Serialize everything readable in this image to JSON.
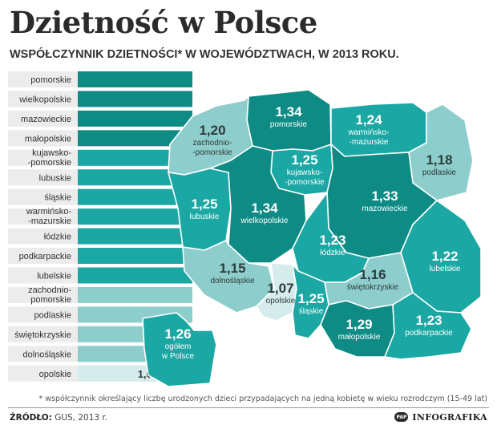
{
  "header": {
    "title": "Dzietność w Polsce",
    "subtitle": "WSPÓŁCZYNNIK DZIETNOŚCI* W WOJEWÓDZTWACH, W 2013 ROKU."
  },
  "footer": {
    "footnote": "* współczynnik określający liczbę urodzonych dzieci przypadających na jedną kobietę w wieku rozrodczym (15-49 lat)",
    "source_label": "ŹRÓDŁO:",
    "source_value": "GUS, 2013 r.",
    "brand_logo": "PAP",
    "brand_text": "INFOGRAFIKA"
  },
  "colors": {
    "dark": "#0e8b84",
    "mid": "#1ba7a3",
    "light": "#8dcdcb",
    "pale": "#d6ecec",
    "row_bg": "#ececec",
    "region_label": "#ffffff",
    "region_value_dark": "#2d3b3b"
  },
  "chart_data": {
    "type": "bar",
    "orientation": "horizontal",
    "decimal_separator": ",",
    "categories": [
      "pomorskie",
      "wielkopolskie",
      "mazowieckie",
      "małopolskie",
      "kujawsko-\n-pomorskie",
      "lubuskie",
      "śląskie",
      "warmińsko-\n-mazurskie",
      "łódzkie",
      "podkarpackie",
      "lubelskie",
      "zachodnio-\npomorskie",
      "podlaskie",
      "świętokrzyskie",
      "dolnośląskie",
      "opolskie"
    ],
    "values": [
      1.34,
      1.34,
      1.33,
      1.29,
      1.25,
      1.25,
      1.25,
      1.24,
      1.23,
      1.23,
      1.22,
      1.2,
      1.18,
      1.16,
      1.15,
      1.07
    ],
    "map_regions": [
      {
        "name": "pomorskie",
        "label": "pomorskie",
        "value": 1.34
      },
      {
        "name": "warminsko-mazurskie",
        "label": "warmińsko-\n-mazurskie",
        "value": 1.24
      },
      {
        "name": "zachodniopomorskie",
        "label": "zachodnio-\n-pomorskie",
        "value": 1.2
      },
      {
        "name": "podlaskie",
        "label": "podlaskie",
        "value": 1.18
      },
      {
        "name": "kujawsko-pomorskie",
        "label": "kujawsko-\n-pomorskie",
        "value": 1.25
      },
      {
        "name": "lubuskie",
        "label": "lubuskie",
        "value": 1.25
      },
      {
        "name": "wielkopolskie",
        "label": "wielkopolskie",
        "value": 1.34
      },
      {
        "name": "mazowieckie",
        "label": "mazowieckie",
        "value": 1.33
      },
      {
        "name": "lodzkie",
        "label": "łódzkie",
        "value": 1.23
      },
      {
        "name": "dolnoslaskie",
        "label": "dolnośląskie",
        "value": 1.15
      },
      {
        "name": "lubelskie",
        "label": "lubelskie",
        "value": 1.22
      },
      {
        "name": "opolskie",
        "label": "opolskie",
        "value": 1.07
      },
      {
        "name": "slaskie",
        "label": "śląskie",
        "value": 1.25
      },
      {
        "name": "swietokrzyskie",
        "label": "świętokrzyskie",
        "value": 1.16
      },
      {
        "name": "malopolskie",
        "label": "małopolskie",
        "value": 1.29
      },
      {
        "name": "podkarpackie",
        "label": "podkarpackie",
        "value": 1.23
      }
    ],
    "total": {
      "label": "ogółem\nw Polsce",
      "value": 1.26
    }
  }
}
